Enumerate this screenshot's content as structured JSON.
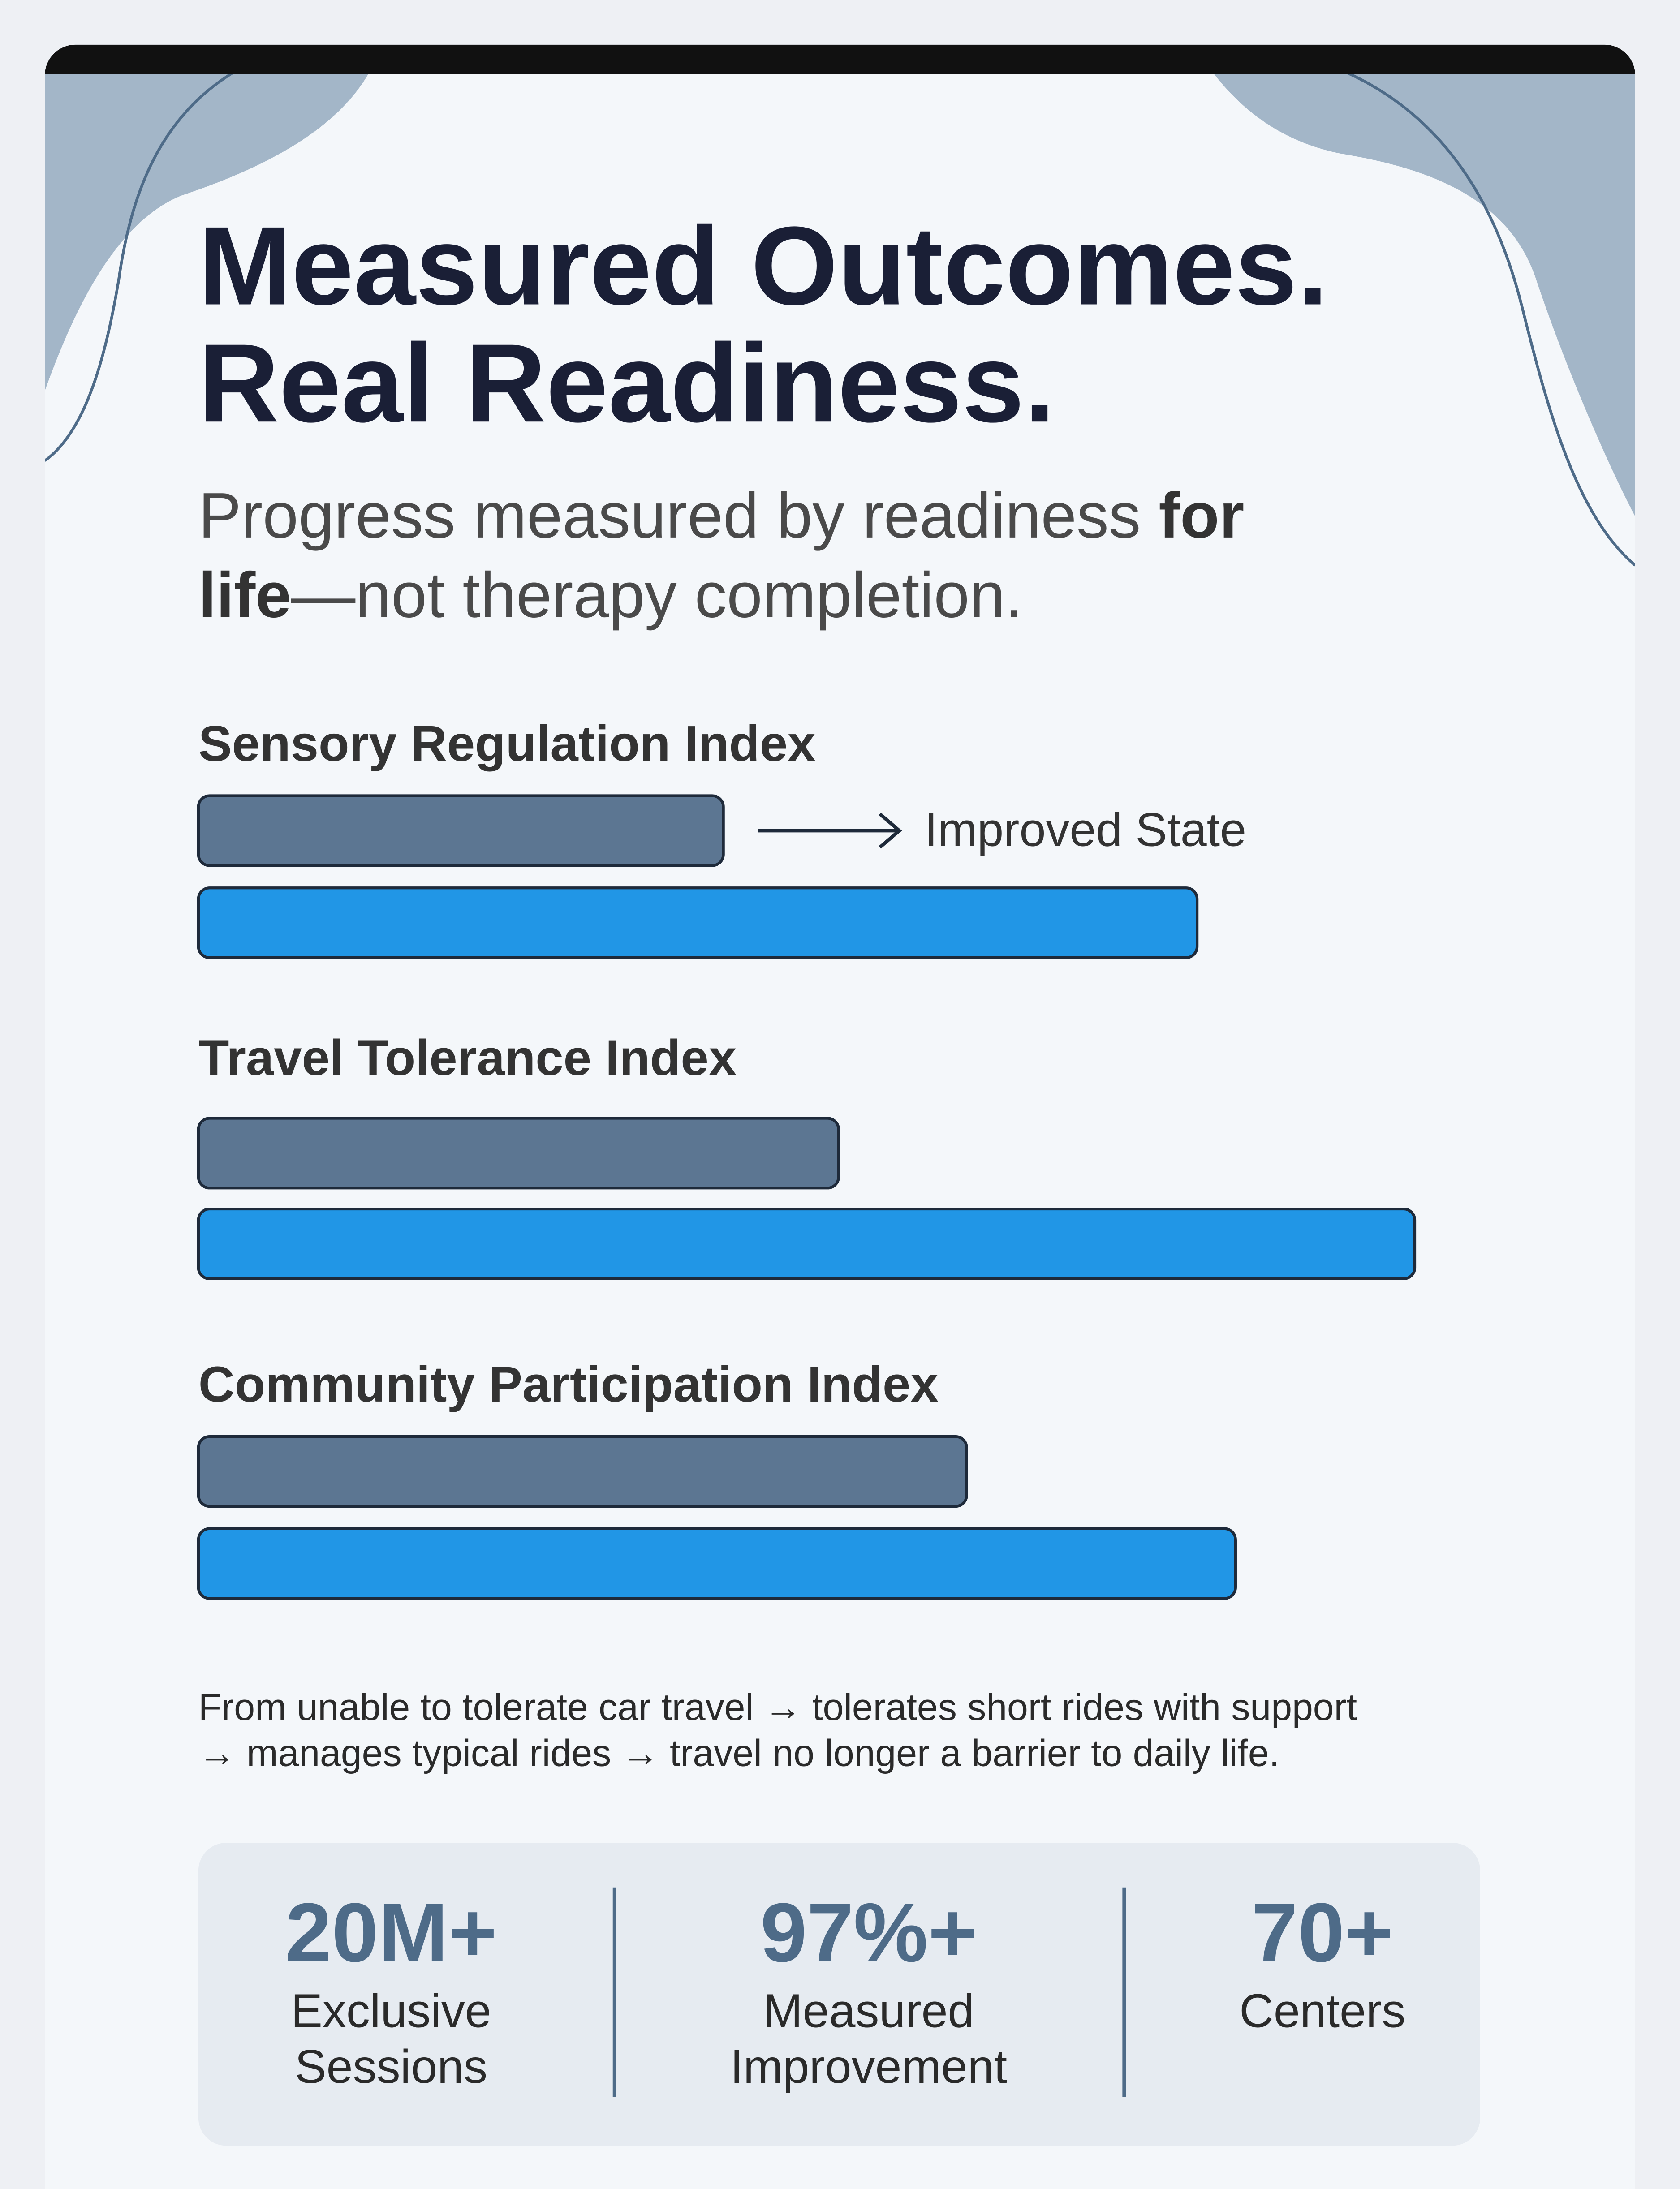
{
  "header": {
    "title_lines": [
      "Measured Outcomes.",
      "Real Readiness."
    ],
    "subtitle": {
      "line1": [
        "Progress measured by readiness ",
        "for"
      ],
      "line2": [
        "life",
        "—not therapy completion."
      ]
    }
  },
  "chart_data": {
    "type": "bar",
    "annotation": "Improved State",
    "categories": [
      "Sensory Regulation Index",
      "Travel Tolerance Index",
      "Community Participation Index"
    ],
    "series": [
      {
        "color": "#5c7692",
        "values": [
          41,
          50,
          60
        ]
      },
      {
        "color": "#2196e6",
        "values": [
          78,
          95,
          81
        ]
      }
    ],
    "xlim": [
      0,
      100
    ]
  },
  "note_lines": [
    "From unable to tolerate car travel → tolerates short rides with support",
    "→ manages typical rides → travel no longer a barrier to daily life."
  ],
  "stats": [
    {
      "value": "20M+",
      "label_lines": [
        "Exclusive",
        "Sessions"
      ]
    },
    {
      "value": "97%+",
      "label_lines": [
        "Measured",
        "Improvement"
      ]
    },
    {
      "value": "70+",
      "label_lines": [
        "Centers"
      ]
    }
  ]
}
